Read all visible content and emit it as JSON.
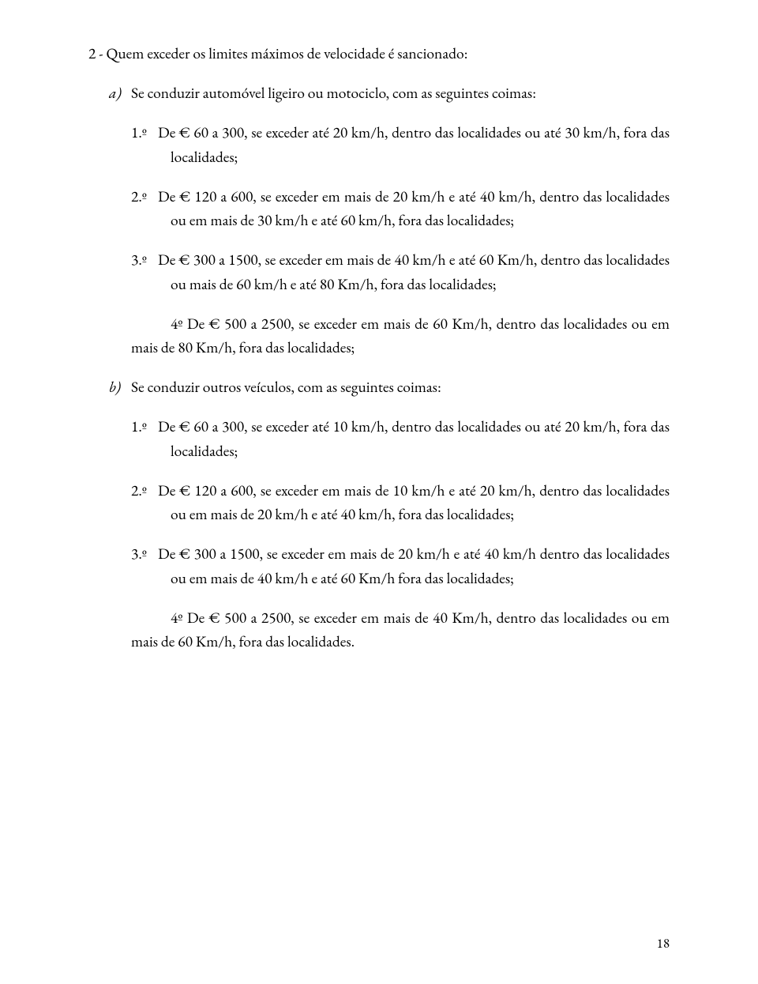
{
  "head": "2 - Quem exceder os limites máximos de velocidade é sancionado:",
  "a": {
    "mark": "a)",
    "text": "Se conduzir automóvel ligeiro ou motociclo, com as seguintes coimas:",
    "items": [
      {
        "mark": "1.º",
        "text": "De € 60 a 300, se exceder até 20 km/h, dentro das localidades ou até 30 km/h, fora das localidades;"
      },
      {
        "mark": "2.º",
        "text": "De € 120 a 600, se exceder em mais de 20 km/h e até 40 km/h, dentro das localidades ou em mais de 30 km/h e até 60 km/h, fora das localidades;"
      },
      {
        "mark": "3.º",
        "text": "De € 300 a 1500, se exceder em mais de 40 km/h e até 60 Km/h, dentro das localidades ou mais de 60 km/h e até 80 Km/h, fora das localidades;"
      },
      {
        "plain": true,
        "text": "4º De € 500 a 2500, se exceder em mais de 60 Km/h, dentro das localidades ou em mais de 80 Km/h, fora das localidades;"
      }
    ]
  },
  "b": {
    "mark": "b)",
    "text": "Se conduzir outros veículos, com as seguintes coimas:",
    "items": [
      {
        "mark": "1.º",
        "text": "De € 60 a 300, se exceder até 10 km/h, dentro das localidades ou até 20 km/h, fora das localidades;"
      },
      {
        "mark": "2.º",
        "text": "De € 120 a 600, se exceder em mais de 10 km/h e até 20 km/h, dentro das localidades ou em mais de 20 km/h e até 40 km/h, fora das localidades;"
      },
      {
        "mark": "3.º",
        "text": "De € 300 a 1500, se exceder em mais de 20 km/h e até 40 km/h dentro das localidades ou em mais de 40 km/h e até 60 Km/h fora das localidades;"
      },
      {
        "plain": true,
        "text": "4º De € 500 a 2500, se exceder em mais de 40 Km/h, dentro das localidades ou em mais de 60 Km/h, fora das localidades."
      }
    ]
  },
  "page": "18"
}
